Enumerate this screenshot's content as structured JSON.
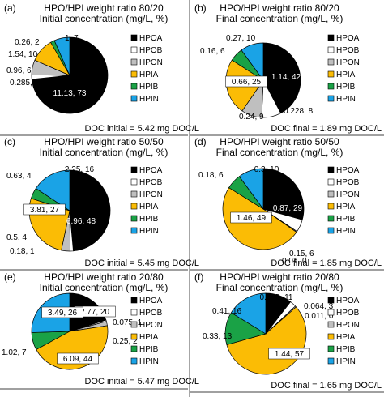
{
  "colors": {
    "HPOA": "#000000",
    "HPOB": "#ffffff",
    "HPON": "#bfbfbf",
    "HPIA": "#fbbc05",
    "HPIB": "#1aa246",
    "HPIN": "#1aa3e6"
  },
  "legend_labels": [
    "HPOA",
    "HPOB",
    "HPON",
    "HPIA",
    "HPIB",
    "HPIN"
  ],
  "chart_data": [
    {
      "type": "pie",
      "panel_label": "(a)",
      "title": "HPO/HPI weight ratio 80/20",
      "subtitle": "Initial concentration (mg/L, %)",
      "doc_text": "DOC initial = 5.42 mg DOC/L",
      "slices": [
        {
          "name": "HPOA",
          "value": 11.13,
          "percent": 73,
          "label": "11.13, 73"
        },
        {
          "name": "HPOB",
          "value": 0.285,
          "percent": 2,
          "label": "0.285, 2"
        },
        {
          "name": "HPON",
          "value": 0.96,
          "percent": 6,
          "label": "0.96, 6"
        },
        {
          "name": "HPIA",
          "value": 1.54,
          "percent": 10,
          "label": "1.54, 10"
        },
        {
          "name": "HPIB",
          "value": 0.26,
          "percent": 2,
          "label": "0.26, 2"
        },
        {
          "name": "HPIN",
          "value": 1,
          "percent": 7,
          "label": "1, 7"
        }
      ]
    },
    {
      "type": "pie",
      "panel_label": "(b)",
      "title": "HPO/HPI weight ratio 80/20",
      "subtitle": "Final concentration (mg/L, %)",
      "doc_text": "DOC final = 1.89 mg DOC/L",
      "slices": [
        {
          "name": "HPOA",
          "value": 1.14,
          "percent": 42,
          "label": "1.14, 42"
        },
        {
          "name": "HPOB",
          "value": 0.228,
          "percent": 8,
          "label": "0.228, 8"
        },
        {
          "name": "HPON",
          "value": 0.24,
          "percent": 9,
          "label": "0.24, 9"
        },
        {
          "name": "HPIA",
          "value": 0.66,
          "percent": 25,
          "label": "0.66, 25"
        },
        {
          "name": "HPIB",
          "value": 0.16,
          "percent": 6,
          "label": "0.16, 6"
        },
        {
          "name": "HPIN",
          "value": 0.27,
          "percent": 10,
          "label": "0.27, 10"
        }
      ]
    },
    {
      "type": "pie",
      "panel_label": "(c)",
      "title": "HPO/HPI weight ratio 50/50",
      "subtitle": "Initial concentration (mg/L, %)",
      "doc_text": "DOC initial = 5.45 mg DOC/L",
      "slices": [
        {
          "name": "HPOA",
          "value": 6.96,
          "percent": 48,
          "label": "6.96, 48"
        },
        {
          "name": "HPOB",
          "value": 0.18,
          "percent": 1,
          "label": "0.18, 1"
        },
        {
          "name": "HPON",
          "value": 0.5,
          "percent": 4,
          "label": "0.5, 4"
        },
        {
          "name": "HPIA",
          "value": 3.81,
          "percent": 27,
          "label": "3.81, 27"
        },
        {
          "name": "HPIB",
          "value": 0.63,
          "percent": 4,
          "label": "0.63, 4"
        },
        {
          "name": "HPIN",
          "value": 2.25,
          "percent": 16,
          "label": "2.25, 16"
        }
      ]
    },
    {
      "type": "pie",
      "panel_label": "(d)",
      "title": "HPO/HPI weight ratio 50/50",
      "subtitle": "Final concentration (mg/L, %)",
      "doc_text": "DOC final = 1.85 mg DOC/L",
      "slices": [
        {
          "name": "HPOA",
          "value": 0.87,
          "percent": 29,
          "label": "0.87, 29"
        },
        {
          "name": "HPOB",
          "value": 0.15,
          "percent": 6,
          "label": "0.15, 6"
        },
        {
          "name": "HPON",
          "value": 0.01,
          "percent": 0,
          "label": "0.01, 0"
        },
        {
          "name": "HPIA",
          "value": 1.46,
          "percent": 49,
          "label": "1.46, 49"
        },
        {
          "name": "HPIB",
          "value": 0.18,
          "percent": 6,
          "label": "0.18, 6"
        },
        {
          "name": "HPIN",
          "value": 0.3,
          "percent": 10,
          "label": "0.3, 10"
        }
      ]
    },
    {
      "type": "pie",
      "panel_label": "(e)",
      "title": "HPO/HPI weight ratio 20/80",
      "subtitle": "Initial concentration (mg/L, %)",
      "doc_text": "DOC initial = 5.47 mg DOC/L",
      "slices": [
        {
          "name": "HPOA",
          "value": 2.77,
          "percent": 20,
          "label": "2.77, 20"
        },
        {
          "name": "HPOB",
          "value": 0.075,
          "percent": 1,
          "label": "0.075, 1"
        },
        {
          "name": "HPON",
          "value": 0.25,
          "percent": 2,
          "label": "0.25, 2"
        },
        {
          "name": "HPIA",
          "value": 6.09,
          "percent": 44,
          "label": "6.09, 44"
        },
        {
          "name": "HPIB",
          "value": 1.02,
          "percent": 7,
          "label": "1.02, 7"
        },
        {
          "name": "HPIN",
          "value": 3.49,
          "percent": 26,
          "label": "3.49, 26"
        }
      ]
    },
    {
      "type": "pie",
      "panel_label": "(f)",
      "title": "HPO/HPI weight ratio 20/80",
      "subtitle": "Final concentration (mg/L, %)",
      "doc_text": "DOC final = 1.65 mg DOC/L",
      "slices": [
        {
          "name": "HPOA",
          "value": 0.265,
          "percent": 11,
          "label": "0.265, 11"
        },
        {
          "name": "HPOB",
          "value": 0.064,
          "percent": 3,
          "label": "0.064, 3"
        },
        {
          "name": "HPON",
          "value": 0.011,
          "percent": 0,
          "label": "0.011, 0"
        },
        {
          "name": "HPIA",
          "value": 1.44,
          "percent": 57,
          "label": "1.44, 57"
        },
        {
          "name": "HPIB",
          "value": 0.33,
          "percent": 13,
          "label": "0.33, 13"
        },
        {
          "name": "HPIN",
          "value": 0.41,
          "percent": 16,
          "label": "0.41, 16"
        }
      ]
    }
  ]
}
